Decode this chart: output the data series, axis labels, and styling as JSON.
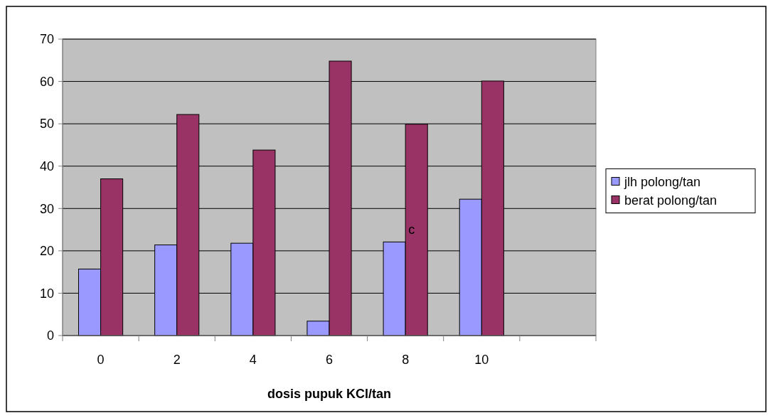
{
  "chart_data": {
    "type": "bar",
    "xlabel": "dosis pupuk KCl/tan",
    "categories": [
      "0",
      "2",
      "4",
      "6",
      "8",
      "10",
      null
    ],
    "series": [
      {
        "name": "jlh polong/tan",
        "color": "#9999ff",
        "values": [
          15.7,
          21.4,
          21.8,
          3.4,
          22.1,
          32.2,
          null
        ]
      },
      {
        "name": "berat polong/tan",
        "color": "#993366",
        "values": [
          37,
          52.2,
          43.8,
          64.8,
          49.9,
          60.1,
          null
        ]
      }
    ],
    "ylim": [
      0,
      70
    ],
    "yticks": [
      0,
      10,
      20,
      30,
      40,
      50,
      60,
      70
    ],
    "grid": "y",
    "legend": "right",
    "annotations": [
      {
        "text": "c",
        "x": "8",
        "y": 25
      }
    ]
  }
}
